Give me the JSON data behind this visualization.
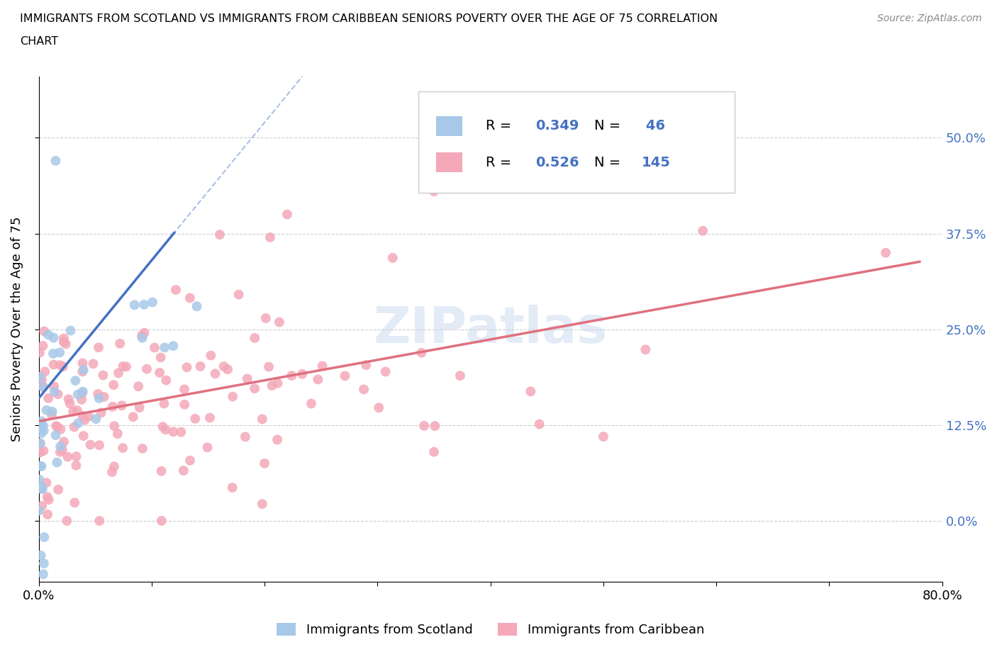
{
  "title_line1": "IMMIGRANTS FROM SCOTLAND VS IMMIGRANTS FROM CARIBBEAN SENIORS POVERTY OVER THE AGE OF 75 CORRELATION",
  "title_line2": "CHART",
  "source": "Source: ZipAtlas.com",
  "ylabel": "Seniors Poverty Over the Age of 75",
  "xlim": [
    0.0,
    0.8
  ],
  "ylim": [
    -0.08,
    0.58
  ],
  "ytick_vals": [
    0.0,
    0.125,
    0.25,
    0.375,
    0.5
  ],
  "ytick_labels": [
    "0.0%",
    "12.5%",
    "25.0%",
    "37.5%",
    "50.0%"
  ],
  "xtick_vals": [
    0.0,
    0.1,
    0.2,
    0.3,
    0.4,
    0.5,
    0.6,
    0.7,
    0.8
  ],
  "xtick_labels": [
    "0.0%",
    "",
    "",
    "",
    "",
    "",
    "",
    "",
    "80.0%"
  ],
  "scotland_R": 0.349,
  "scotland_N": 46,
  "caribbean_R": 0.526,
  "caribbean_N": 145,
  "scotland_scatter_color": "#a8c8e8",
  "caribbean_scatter_color": "#f4a8b8",
  "scotland_line_color": "#4472c4",
  "caribbean_line_color": "#e07080",
  "legend_color": "#4472c4",
  "watermark": "ZIPatlas",
  "watermark_color": "#c8d8f0"
}
